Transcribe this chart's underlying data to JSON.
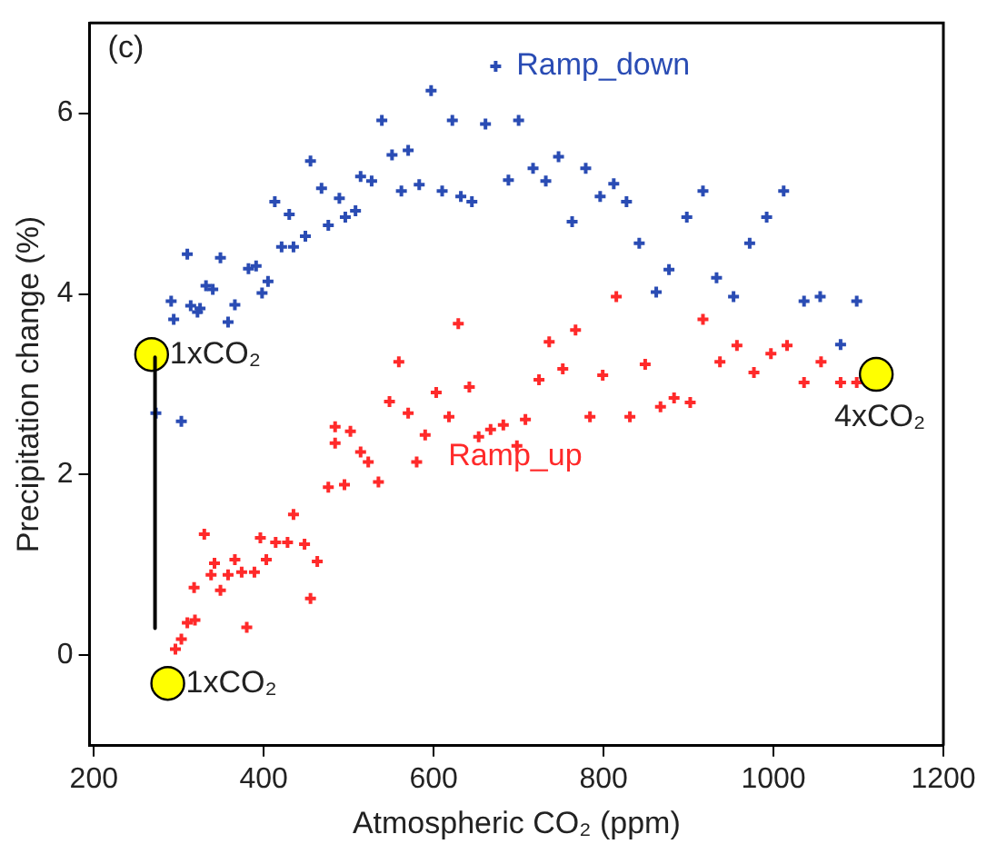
{
  "chart_data": {
    "type": "scatter",
    "xlabel": "Atmospheric CO₂ (ppm)",
    "ylabel": "Precipitation change (%)",
    "xlim": [
      195,
      1200
    ],
    "xticks": [
      200,
      400,
      600,
      800,
      1000,
      1200
    ],
    "ylim": [
      -1,
      7
    ],
    "yticks": [
      0,
      2,
      4,
      6
    ],
    "grid": false,
    "legend": false,
    "marker": "cross",
    "series": [
      {
        "name": "Ramp_down",
        "color": "#2a4cb4",
        "x": [
          597,
          539,
          622,
          455,
          551,
          570,
          468,
          514,
          527,
          562,
          583,
          610,
          632,
          413,
          430,
          489,
          476,
          496,
          508,
          449,
          421,
          435,
          310,
          349,
          382,
          391,
          405,
          398,
          332,
          340,
          291,
          314,
          325,
          322,
          294,
          366,
          358,
          273,
          303,
          673,
          661,
          700,
          747,
          717,
          732,
          688,
          779,
          645,
          763,
          796,
          812,
          827,
          842,
          877,
          862,
          898,
          917,
          933,
          953,
          972,
          992,
          1012,
          1036,
          1055,
          1098,
          1079
        ],
        "values": [
          6.25,
          5.92,
          5.92,
          5.47,
          5.54,
          5.59,
          5.17,
          5.3,
          5.25,
          5.14,
          5.21,
          5.14,
          5.08,
          5.02,
          4.88,
          5.06,
          4.76,
          4.85,
          4.92,
          4.64,
          4.52,
          4.52,
          4.44,
          4.4,
          4.28,
          4.31,
          4.14,
          4.01,
          4.09,
          4.05,
          3.92,
          3.87,
          3.84,
          3.8,
          3.72,
          3.88,
          3.69,
          2.68,
          2.59,
          6.52,
          5.88,
          5.92,
          5.52,
          5.39,
          5.25,
          5.26,
          5.39,
          5.02,
          4.8,
          5.08,
          5.22,
          5.02,
          4.56,
          4.27,
          4.02,
          4.85,
          5.14,
          4.18,
          3.97,
          4.56,
          4.85,
          5.14,
          3.92,
          3.97,
          3.92,
          3.44
        ]
      },
      {
        "name": "Ramp_up",
        "color": "#ff2a2a",
        "x": [
          815,
          629,
          917,
          767,
          736,
          957,
          937,
          997,
          1016,
          1056,
          849,
          752,
          724,
          799,
          977,
          1036,
          1079,
          1098,
          603,
          642,
          618,
          708,
          784,
          831,
          867,
          883,
          902,
          653,
          667,
          682,
          698,
          559,
          548,
          570,
          590,
          502,
          484,
          484,
          514,
          523,
          535,
          580,
          476,
          495,
          435,
          330,
          396,
          414,
          428,
          448,
          463,
          403,
          366,
          342,
          338,
          358,
          374,
          389,
          349,
          318,
          455,
          319,
          310,
          380,
          303,
          296
        ],
        "values": [
          3.97,
          3.67,
          3.72,
          3.6,
          3.47,
          3.43,
          3.25,
          3.34,
          3.43,
          3.25,
          3.22,
          3.17,
          3.05,
          3.1,
          3.13,
          3.02,
          3.02,
          3.02,
          2.91,
          2.97,
          2.64,
          2.61,
          2.64,
          2.64,
          2.75,
          2.85,
          2.8,
          2.42,
          2.5,
          2.55,
          2.32,
          3.25,
          2.81,
          2.68,
          2.44,
          2.48,
          2.53,
          2.35,
          2.25,
          2.14,
          1.92,
          2.14,
          1.86,
          1.89,
          1.56,
          1.34,
          1.3,
          1.25,
          1.25,
          1.23,
          1.04,
          1.06,
          1.06,
          1.02,
          0.89,
          0.89,
          0.92,
          0.92,
          0.72,
          0.75,
          0.63,
          0.39,
          0.36,
          0.31,
          0.18,
          0.07
        ]
      },
      {
        "type": "line",
        "color": "#000000",
        "marker": "none",
        "x": [
          272,
          272
        ],
        "values": [
          3.3,
          0.3
        ]
      },
      {
        "color": "#ffff00",
        "marker": "circle",
        "x": [
          268,
          287,
          1121
        ],
        "values": [
          3.33,
          -0.31,
          3.11
        ]
      }
    ],
    "annotations": [
      "(c)",
      {
        "text": "1xCO₂",
        "x": 268,
        "y": 3.33
      },
      {
        "text": "1xCO₂",
        "x": 287,
        "y": -0.31
      },
      {
        "text": "4xCO₂",
        "x": 1121,
        "y": 3.11
      }
    ]
  }
}
